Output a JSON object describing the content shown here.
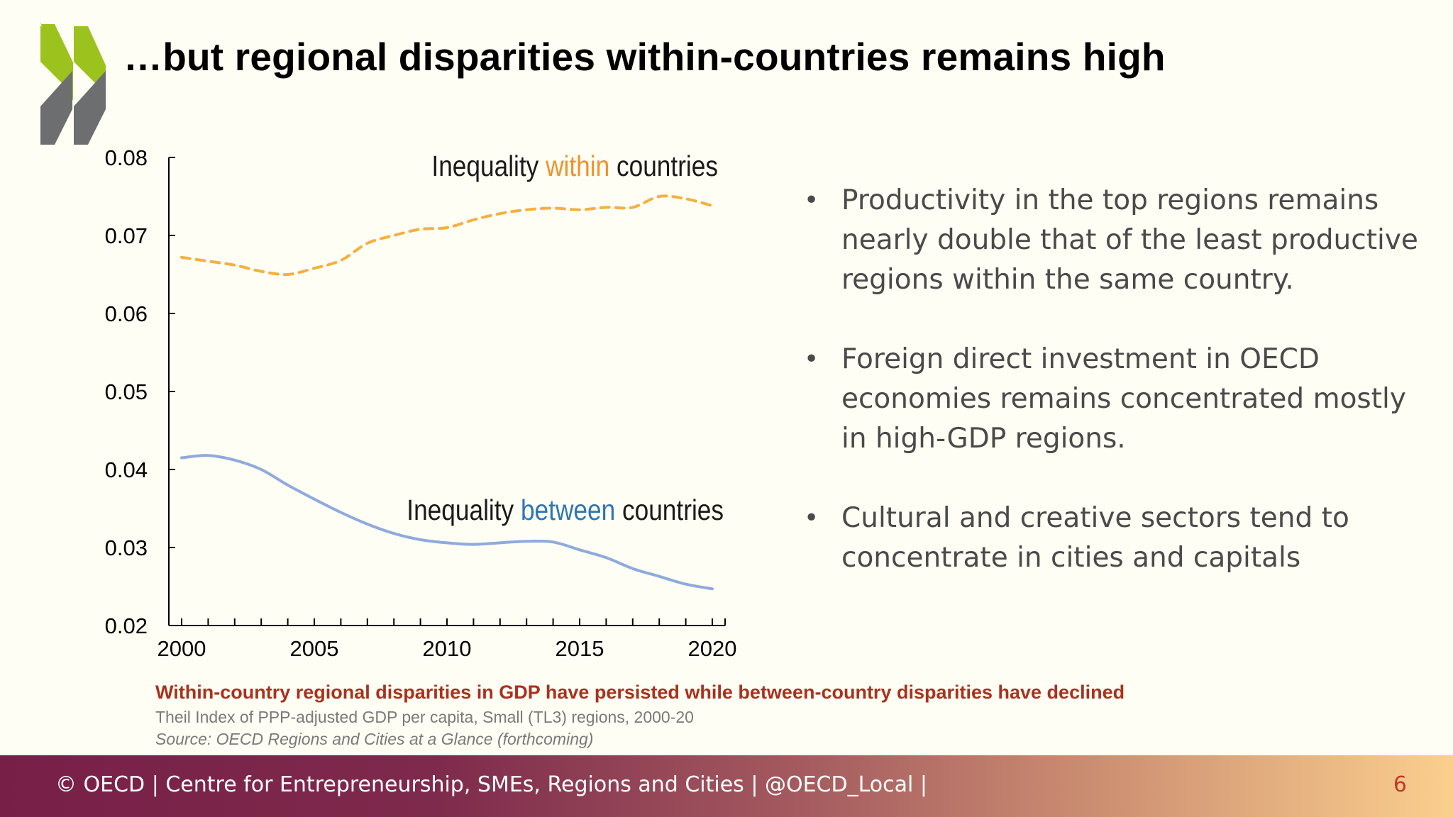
{
  "title": "…but regional disparities within-countries remains high",
  "logo": {
    "name": "OECD",
    "colors": {
      "green": "#9cc21e",
      "gray": "#6d6e70"
    }
  },
  "chart_data": {
    "type": "line",
    "ylim": [
      0.02,
      0.08
    ],
    "xlim": [
      2000,
      2020
    ],
    "yticks": [
      "0.02",
      "0.03",
      "0.04",
      "0.05",
      "0.06",
      "0.07",
      "0.08"
    ],
    "xticks": [
      "2000",
      "2005",
      "2010",
      "2015",
      "2020"
    ],
    "grid": false,
    "series": [
      {
        "key": "within",
        "label_pre": "Inequality ",
        "label_hl": "within",
        "label_post": " countries",
        "color": "#f5b041",
        "highlight_color": "#f0922e",
        "style": "dashed",
        "x": [
          2000,
          2001,
          2002,
          2003,
          2004,
          2005,
          2006,
          2007,
          2008,
          2009,
          2010,
          2011,
          2012,
          2013,
          2014,
          2015,
          2016,
          2017,
          2018,
          2019,
          2020
        ],
        "values": [
          0.0672,
          0.0667,
          0.0662,
          0.0654,
          0.065,
          0.0658,
          0.0668,
          0.069,
          0.07,
          0.0708,
          0.071,
          0.072,
          0.0728,
          0.0733,
          0.0735,
          0.0733,
          0.0736,
          0.0736,
          0.075,
          0.0747,
          0.0738
        ]
      },
      {
        "key": "between",
        "label_pre": "Inequality ",
        "label_hl": "between",
        "label_post": " countries",
        "color": "#8faadc",
        "highlight_color": "#2e75b6",
        "style": "solid",
        "x": [
          2000,
          2001,
          2002,
          2003,
          2004,
          2005,
          2006,
          2007,
          2008,
          2009,
          2010,
          2011,
          2012,
          2013,
          2014,
          2015,
          2016,
          2017,
          2018,
          2019,
          2020
        ],
        "values": [
          0.0415,
          0.0418,
          0.0412,
          0.04,
          0.038,
          0.0362,
          0.0345,
          0.033,
          0.0318,
          0.031,
          0.0306,
          0.0304,
          0.0306,
          0.0308,
          0.0307,
          0.0297,
          0.0287,
          0.0273,
          0.0263,
          0.0253,
          0.0247
        ]
      }
    ]
  },
  "bullets": [
    "Productivity in the top regions remains nearly double that of the least productive regions within the same country.",
    "Foreign direct investment in OECD economies remains concentrated mostly in high-GDP regions.",
    "Cultural and creative sectors tend to concentrate in cities and capitals"
  ],
  "caption": {
    "title": "Within-country regional disparities in GDP have persisted while between-country disparities have declined",
    "subtitle": "Theil Index of PPP-adjusted GDP per capita, Small (TL3) regions, 2000-20",
    "source": "Source: OECD Regions and Cities at a Glance (forthcoming)"
  },
  "footer": {
    "text": "© OECD | Centre for Entrepreneurship, SMEs, Regions and Cities | @OECD_Local |",
    "page": "6"
  }
}
